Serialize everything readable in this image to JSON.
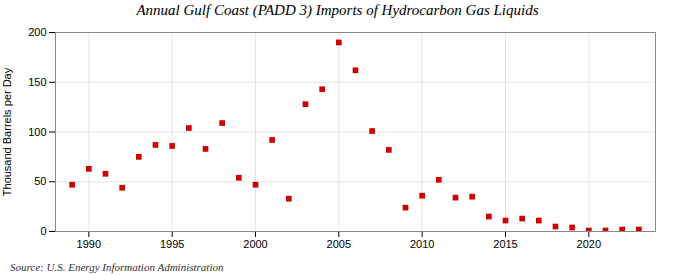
{
  "chart_data": {
    "type": "scatter",
    "title": "Annual Gulf Coast (PADD 3) Imports of Hydrocarbon Gas Liquids",
    "ylabel": "Thousand Barrels per Day",
    "annotations": [
      "Source: U.S. Energy Information Administration"
    ],
    "x": [
      1989,
      1990,
      1991,
      1992,
      1993,
      1994,
      1995,
      1996,
      1997,
      1998,
      1999,
      2000,
      2001,
      2002,
      2003,
      2004,
      2005,
      2006,
      2007,
      2008,
      2009,
      2010,
      2011,
      2012,
      2013,
      2014,
      2015,
      2016,
      2017,
      2018,
      2019,
      2020,
      2021,
      2022,
      2023
    ],
    "values": [
      47,
      63,
      58,
      44,
      75,
      87,
      86,
      104,
      83,
      109,
      54,
      47,
      92,
      33,
      128,
      143,
      190,
      162,
      101,
      82,
      24,
      36,
      52,
      34,
      35,
      15,
      11,
      13,
      11,
      5,
      4,
      1,
      1,
      2,
      2
    ],
    "color": "#cc0000",
    "marker": "square",
    "xlim": [
      1988,
      2024
    ],
    "ylim": [
      0,
      200
    ],
    "xticks": [
      1990,
      1995,
      2000,
      2005,
      2010,
      2015,
      2020
    ],
    "yticks": [
      0,
      50,
      100,
      150,
      200
    ],
    "grid": true
  }
}
